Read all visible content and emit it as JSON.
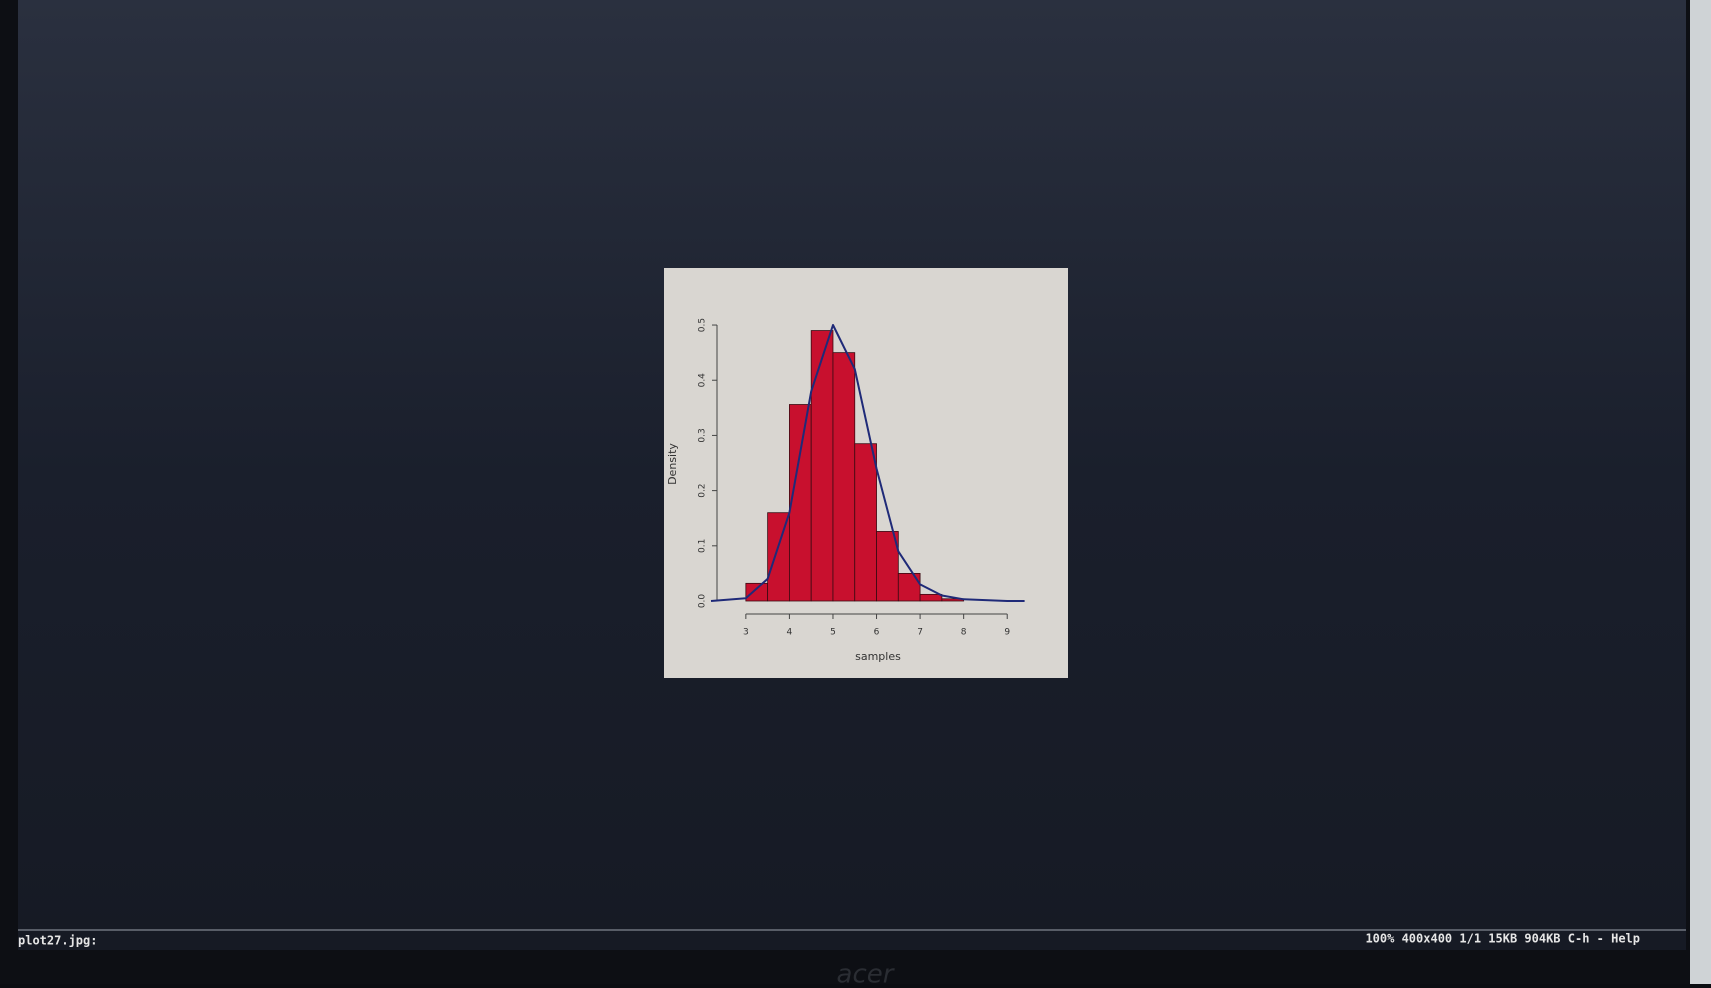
{
  "viewer": {
    "filename": "plot27.jpg:",
    "status": "100% 400x400 1/1 15KB 904KB C-h - Help"
  },
  "monitor_brand": "acer",
  "chart_data": {
    "type": "histogram",
    "xlabel": "samples",
    "ylabel": "Density",
    "bins": [
      3,
      3.5,
      4,
      4.5,
      5,
      5.5,
      6,
      6.5,
      7,
      7.5,
      8
    ],
    "values": [
      0.032,
      0.16,
      0.356,
      0.49,
      0.45,
      0.285,
      0.126,
      0.05,
      0.012,
      0.004
    ],
    "color": "#c8102e",
    "curve": {
      "x": [
        2.2,
        3,
        3.5,
        4,
        4.5,
        5,
        5.5,
        6,
        6.5,
        7,
        7.5,
        8,
        9,
        9.4
      ],
      "values": [
        0,
        0.005,
        0.04,
        0.16,
        0.38,
        0.5,
        0.42,
        0.24,
        0.09,
        0.03,
        0.01,
        0.003,
        0,
        0
      ],
      "color": "#1f2a78"
    },
    "xlim": [
      2.2,
      9.5
    ],
    "ylim": [
      0,
      0.52
    ],
    "xticks": [
      3,
      4,
      5,
      6,
      7,
      8,
      9
    ],
    "yticks": [
      {
        "value": 0,
        "label": "0.0"
      },
      0.1,
      0.2,
      0.3,
      0.4,
      0.5
    ]
  }
}
